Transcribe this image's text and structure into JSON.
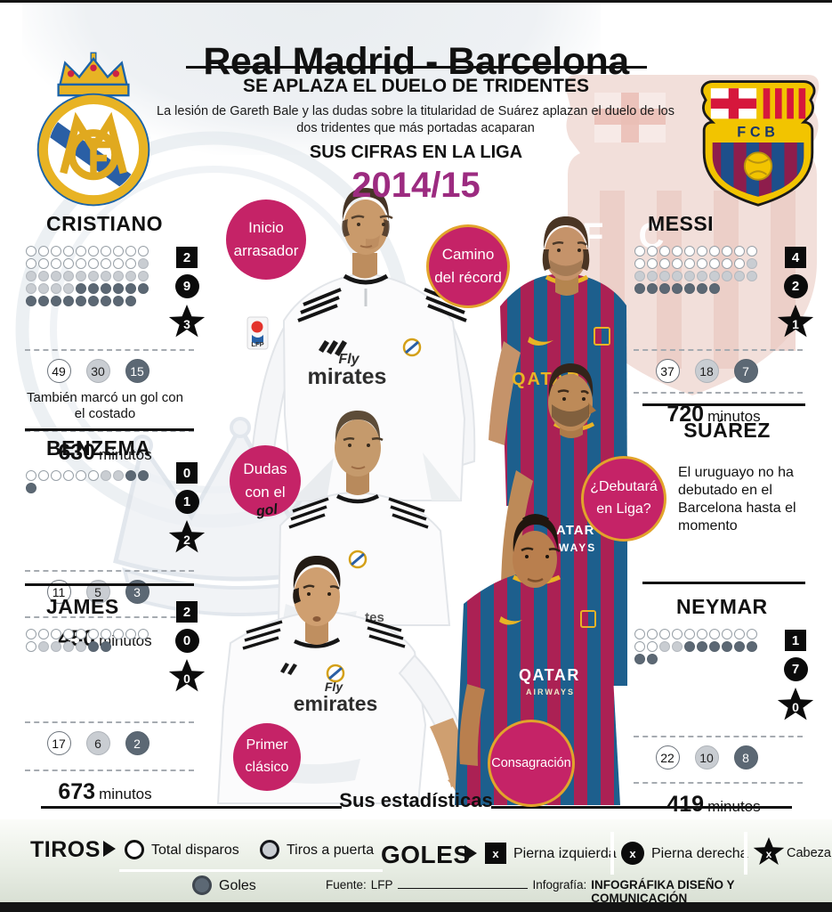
{
  "header": {
    "title": "Real Madrid - Barcelona",
    "subtitle": "SE APLAZA EL DUELO DE TRIDENTES",
    "description_line1": "La lesión de Gareth Bale y las dudas sobre la titularidad de Suárez aplazan el duelo de los",
    "description_line2": "dos tridentes que más portadas acaparan",
    "section_title": "SUS CIFRAS EN LA LIGA",
    "season": "2014/15"
  },
  "players": {
    "cristiano": {
      "name": "CRISTIANO",
      "shots_total": 49,
      "shots_on_target": 30,
      "goals": 15,
      "goals_left": "2",
      "goals_right": "9",
      "goals_head": "3",
      "note": "También marcó un gol con el costado",
      "minutes_value": "630",
      "minutes_unit": "minutos",
      "callout_line1": "Inicio",
      "callout_line2": "arrasador"
    },
    "benzema": {
      "name": "BENZEMA",
      "shots_total": 11,
      "shots_on_target": 5,
      "goals": 3,
      "goals_left": "0",
      "goals_right": "1",
      "goals_head": "2",
      "minutes_value": "450",
      "minutes_unit": "minutos",
      "callout_line1": "Dudas",
      "callout_line2": "con el",
      "callout_extra": "gol"
    },
    "james": {
      "name": "JAMES",
      "shots_total": 17,
      "shots_on_target": 6,
      "goals": 2,
      "goals_left": "2",
      "goals_right": "0",
      "goals_head": "0",
      "minutes_value": "673",
      "minutes_unit": "minutos",
      "callout_line1": "Primer",
      "callout_line2": "clásico"
    },
    "messi": {
      "name": "MESSI",
      "shots_total": 37,
      "shots_on_target": 18,
      "goals": 7,
      "goals_left": "4",
      "goals_right": "2",
      "goals_head": "1",
      "minutes_value": "720",
      "minutes_unit": "minutos",
      "callout_line1": "Camino",
      "callout_line2": "del récord"
    },
    "suarez": {
      "name": "SUÁREZ",
      "note": "El uruguayo no ha debutado en el Barcelona hasta el momento",
      "callout_line1": "¿Debutará",
      "callout_line2": "en Liga?"
    },
    "neymar": {
      "name": "NEYMAR",
      "shots_total": 22,
      "shots_on_target": 10,
      "goals": 8,
      "goals_left": "1",
      "goals_right": "7",
      "goals_head": "0",
      "minutes_value": "419",
      "minutes_unit": "minutos",
      "callout_line1": "Consagración"
    }
  },
  "collage": {
    "cr_sponsor_top": "Fly",
    "cr_sponsor": "mirates",
    "benzema_sponsor_partial": "tes",
    "james_sponsor_top": "Fly",
    "james_sponsor": "emirates",
    "messi_sponsor": "QATAR",
    "suarez_sponsor_l1": "ATAR",
    "suarez_sponsor_l2": "WAYS",
    "neymar_sponsor": "QATAR",
    "neymar_sponsor_sub": "AIRWAYS",
    "lfp_patch": "LFP",
    "fcb_text": "FCB",
    "watermark_letters": "F C"
  },
  "footer": {
    "divider_label": "Sus estadísticas",
    "fuente_label": "Fuente:",
    "fuente_value": "LFP",
    "infografia_label": "Infografía:",
    "infografia_value": "INFOGRÁFIKA DISEÑO Y COMUNICACIÓN"
  },
  "legend": {
    "tiros_label": "TIROS",
    "total_disparos": "Total disparos",
    "tiros_a_puerta": "Tiros a puerta",
    "goles_small": "Goles",
    "goles_label": "GOLES",
    "pierna_izquierda": "Pierna izquierda",
    "pierna_derecha": "Pierna derecha",
    "cabeza": "Cabeza",
    "x_mark": "x"
  },
  "colors": {
    "accent_pink": "#c52367",
    "season_purple": "#9c2b80",
    "gold_border": "#e2a42b",
    "shot_dark": "#5c6874",
    "shot_light": "#c9cdd2"
  }
}
